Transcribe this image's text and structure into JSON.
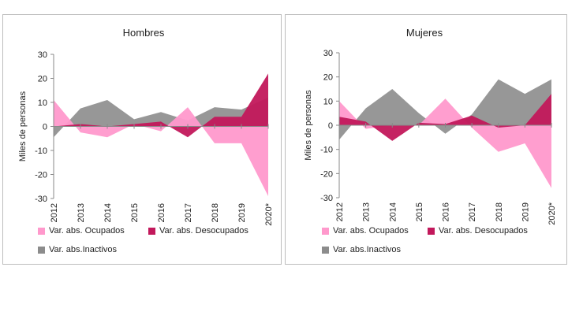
{
  "chart_data": [
    {
      "type": "area",
      "title": "Hombres",
      "ylabel": "Miles de personas",
      "ylim": [
        -30,
        30
      ],
      "yticks": [
        -30,
        -20,
        -10,
        0,
        10,
        20,
        30
      ],
      "categories": [
        "2012",
        "2013",
        "2014",
        "2015",
        "2016",
        "2017",
        "2018",
        "2019",
        "2020*"
      ],
      "series": [
        {
          "name": "Var. abs. Ocupados",
          "color": "#ff99cc",
          "values": [
            11,
            -2.5,
            -4.5,
            1,
            -2,
            8,
            -7,
            -7,
            -29
          ]
        },
        {
          "name": "Var. abs. Desocupados",
          "color": "#c2185b",
          "values": [
            0,
            1,
            0,
            1,
            2,
            -4.5,
            4,
            4,
            22
          ]
        },
        {
          "name": "Var. abs.Inactivos",
          "color": "#8c8c8c",
          "values": [
            -4.5,
            7.5,
            11,
            3,
            6,
            2.5,
            8,
            7,
            12
          ]
        }
      ],
      "legend_position": "bottom"
    },
    {
      "type": "area",
      "title": "Mujeres",
      "ylabel": "Miles de personas",
      "ylim": [
        -30,
        30
      ],
      "yticks": [
        -30,
        -20,
        -10,
        0,
        10,
        20,
        30
      ],
      "categories": [
        "2012",
        "2013",
        "2014",
        "2015",
        "2016",
        "2017",
        "2018",
        "2019",
        "2020*"
      ],
      "series": [
        {
          "name": "Var. abs. Ocupados",
          "color": "#ff99cc",
          "values": [
            10,
            -1.5,
            0,
            0,
            11,
            -1,
            -11,
            -7.5,
            -26
          ]
        },
        {
          "name": "Var. abs. Desocupados",
          "color": "#c2185b",
          "values": [
            3.5,
            1.5,
            -6.5,
            1,
            0.5,
            4,
            -1,
            0,
            13
          ]
        },
        {
          "name": "Var. abs.Inactivos",
          "color": "#8c8c8c",
          "values": [
            -6,
            7,
            15,
            5,
            -3.5,
            4.5,
            19,
            13,
            19
          ]
        }
      ],
      "legend_position": "bottom"
    }
  ]
}
